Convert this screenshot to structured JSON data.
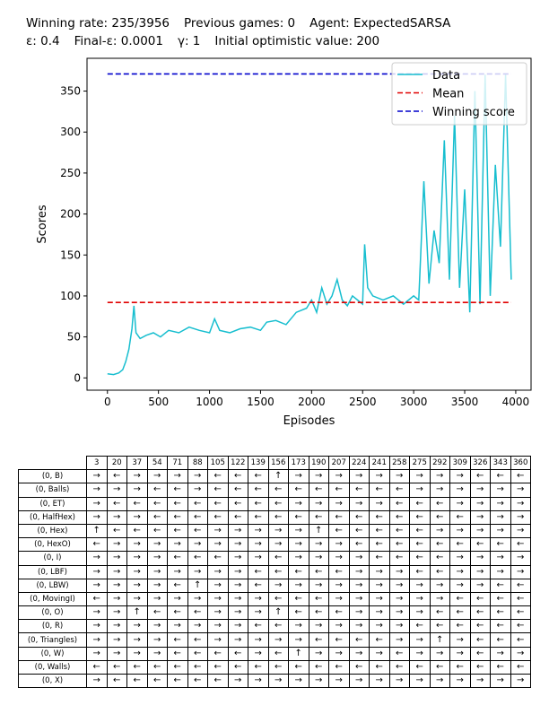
{
  "header": {
    "line1": [
      "Winning rate: 235/3956",
      "Previous games: 0",
      "Agent: ExpectedSARSA"
    ],
    "line2": [
      "ε: 0.4",
      "Final-ε: 0.0001",
      "γ: 1",
      "Initial optimistic value: 200"
    ]
  },
  "chart_data": {
    "type": "line",
    "xlabel": "Episodes",
    "ylabel": "Scores",
    "xlim": [
      -200,
      4150
    ],
    "ylim": [
      -15,
      390
    ],
    "xticks": [
      0,
      500,
      1000,
      1500,
      2000,
      2500,
      3000,
      3500,
      4000
    ],
    "yticks": [
      0,
      50,
      100,
      150,
      200,
      250,
      300,
      350
    ],
    "legend_position": "top-right",
    "grid": false,
    "series": [
      {
        "name": "Data",
        "color": "#17becf",
        "style": "solid",
        "x": [
          0,
          60,
          110,
          150,
          180,
          210,
          240,
          260,
          280,
          320,
          380,
          450,
          520,
          600,
          700,
          800,
          900,
          1000,
          1050,
          1100,
          1200,
          1300,
          1400,
          1500,
          1560,
          1650,
          1750,
          1850,
          1950,
          2000,
          2050,
          2100,
          2150,
          2200,
          2250,
          2300,
          2350,
          2400,
          2450,
          2500,
          2520,
          2550,
          2600,
          2700,
          2800,
          2900,
          3000,
          3050,
          3100,
          3150,
          3200,
          3250,
          3300,
          3350,
          3400,
          3450,
          3500,
          3550,
          3600,
          3650,
          3700,
          3750,
          3800,
          3850,
          3900,
          3956
        ],
        "y": [
          5,
          4,
          6,
          10,
          20,
          35,
          60,
          88,
          55,
          48,
          52,
          55,
          50,
          58,
          55,
          62,
          58,
          55,
          72,
          58,
          55,
          60,
          62,
          58,
          68,
          70,
          65,
          80,
          85,
          95,
          80,
          110,
          90,
          100,
          120,
          95,
          88,
          100,
          95,
          90,
          163,
          110,
          100,
          95,
          100,
          90,
          100,
          95,
          240,
          115,
          180,
          140,
          290,
          120,
          320,
          110,
          230,
          80,
          350,
          90,
          370,
          100,
          260,
          160,
          370,
          120
        ]
      },
      {
        "name": "Mean",
        "color": "#e00000",
        "style": "dashed",
        "x": [
          0,
          3956
        ],
        "y": [
          92,
          92
        ]
      },
      {
        "name": "Winning score",
        "color": "#0000cc",
        "style": "dashed",
        "x": [
          0,
          3956
        ],
        "y": [
          371,
          371
        ]
      }
    ]
  },
  "table": {
    "columns": [
      "3",
      "20",
      "37",
      "54",
      "71",
      "88",
      "105",
      "122",
      "139",
      "156",
      "173",
      "190",
      "207",
      "224",
      "241",
      "258",
      "275",
      "292",
      "309",
      "326",
      "343",
      "360"
    ],
    "rows": [
      {
        "label": "(0, B)",
        "cells": [
          "→",
          "←",
          "→",
          "→",
          "→",
          "→",
          "←",
          "←",
          "←",
          "↑",
          "→",
          "→",
          "→",
          "→",
          "→",
          "→",
          "→",
          "→",
          "→",
          "←",
          "←",
          "←"
        ]
      },
      {
        "label": "(0, Balls)",
        "cells": [
          "→",
          "→",
          "→",
          "←",
          "←",
          "→",
          "←",
          "←",
          "←",
          "←",
          "←",
          "←",
          "←",
          "←",
          "←",
          "←",
          "→",
          "→",
          "→",
          "→",
          "→",
          "→"
        ]
      },
      {
        "label": "(0, ET)",
        "cells": [
          "→",
          "←",
          "←",
          "←",
          "←",
          "←",
          "←",
          "←",
          "←",
          "←",
          "→",
          "→",
          "→",
          "→",
          "→",
          "←",
          "←",
          "←",
          "→",
          "→",
          "→",
          "→"
        ]
      },
      {
        "label": "(0, HalfHex)",
        "cells": [
          "→",
          "→",
          "→",
          "←",
          "←",
          "←",
          "←",
          "←",
          "←",
          "←",
          "←",
          "←",
          "←",
          "←",
          "←",
          "←",
          "←",
          "←",
          "←",
          "→",
          "→",
          "→"
        ]
      },
      {
        "label": "(0, Hex)",
        "cells": [
          "↑",
          "←",
          "←",
          "←",
          "←",
          "←",
          "→",
          "→",
          "→",
          "→",
          "→",
          "↑",
          "←",
          "←",
          "←",
          "←",
          "←",
          "→",
          "→",
          "→",
          "→",
          "→"
        ]
      },
      {
        "label": "(0, HexO)",
        "cells": [
          "←",
          "→",
          "→",
          "→",
          "→",
          "→",
          "→",
          "→",
          "→",
          "→",
          "→",
          "→",
          "→",
          "←",
          "←",
          "←",
          "←",
          "←",
          "←",
          "←",
          "←",
          "←"
        ]
      },
      {
        "label": "(0, I)",
        "cells": [
          "→",
          "→",
          "→",
          "→",
          "←",
          "←",
          "←",
          "→",
          "→",
          "←",
          "→",
          "→",
          "→",
          "→",
          "←",
          "←",
          "←",
          "←",
          "→",
          "→",
          "→",
          "→"
        ]
      },
      {
        "label": "(0, LBF)",
        "cells": [
          "→",
          "→",
          "→",
          "→",
          "→",
          "→",
          "→",
          "→",
          "←",
          "←",
          "←",
          "←",
          "←",
          "→",
          "→",
          "→",
          "←",
          "←",
          "→",
          "→",
          "→",
          "→"
        ]
      },
      {
        "label": "(0, LBW)",
        "cells": [
          "→",
          "→",
          "→",
          "→",
          "←",
          "↑",
          "→",
          "→",
          "←",
          "→",
          "→",
          "→",
          "→",
          "→",
          "→",
          "→",
          "→",
          "→",
          "→",
          "→",
          "←",
          "←"
        ]
      },
      {
        "label": "(0, MovingI)",
        "cells": [
          "←",
          "→",
          "→",
          "→",
          "→",
          "→",
          "→",
          "→",
          "→",
          "←",
          "←",
          "←",
          "→",
          "→",
          "→",
          "→",
          "→",
          "→",
          "←",
          "←",
          "←",
          "←"
        ]
      },
      {
        "label": "(0, O)",
        "cells": [
          "→",
          "→",
          "↑",
          "←",
          "←",
          "←",
          "→",
          "→",
          "→",
          "↑",
          "←",
          "←",
          "←",
          "→",
          "→",
          "→",
          "→",
          "←",
          "←",
          "←",
          "←",
          "←"
        ]
      },
      {
        "label": "(0, R)",
        "cells": [
          "→",
          "→",
          "→",
          "→",
          "→",
          "→",
          "→",
          "→",
          "←",
          "←",
          "→",
          "→",
          "→",
          "→",
          "→",
          "→",
          "←",
          "←",
          "←",
          "←",
          "←",
          "←"
        ]
      },
      {
        "label": "(0, Triangles)",
        "cells": [
          "→",
          "→",
          "→",
          "→",
          "←",
          "←",
          "→",
          "→",
          "→",
          "→",
          "→",
          "←",
          "←",
          "←",
          "←",
          "→",
          "→",
          "↑",
          "→",
          "←",
          "←",
          "←"
        ]
      },
      {
        "label": "(0, W)",
        "cells": [
          "→",
          "→",
          "→",
          "→",
          "←",
          "←",
          "←",
          "←",
          "→",
          "←",
          "↑",
          "→",
          "→",
          "→",
          "→",
          "←",
          "→",
          "→",
          "→",
          "←",
          "→",
          "→"
        ]
      },
      {
        "label": "(0, Walls)",
        "cells": [
          "←",
          "←",
          "←",
          "←",
          "←",
          "←",
          "←",
          "←",
          "←",
          "←",
          "←",
          "←",
          "←",
          "←",
          "←",
          "←",
          "←",
          "←",
          "←",
          "←",
          "←",
          "←"
        ]
      },
      {
        "label": "(0, X)",
        "cells": [
          "→",
          "←",
          "←",
          "←",
          "←",
          "←",
          "←",
          "→",
          "→",
          "→",
          "→",
          "→",
          "→",
          "→",
          "→",
          "→",
          "→",
          "→",
          "→",
          "→",
          "→",
          "→"
        ]
      }
    ]
  }
}
